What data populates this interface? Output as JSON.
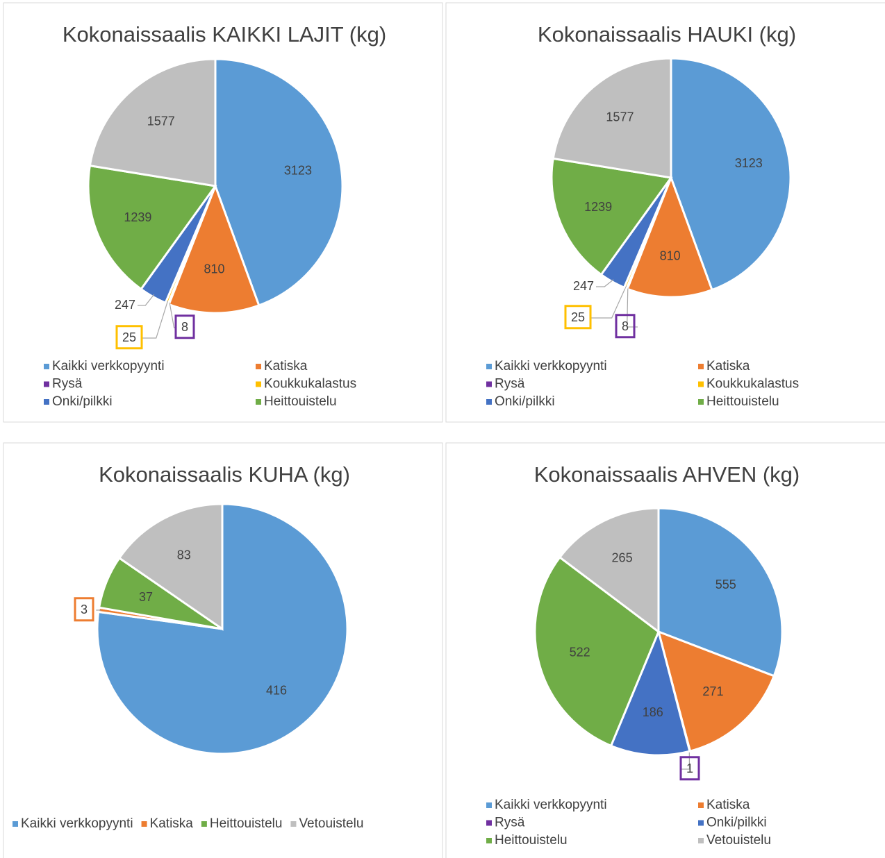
{
  "chart_data": [
    {
      "type": "pie",
      "title": "Kokonaissaalis KAIKKI LAJIT (kg)",
      "categories": [
        "Kaikki verkkopyynti",
        "Katiska",
        "Rysä",
        "Koukkukalastus",
        "Onki/pilkki",
        "Heittouistelu",
        null
      ],
      "values": [
        3123,
        810,
        8,
        25,
        247,
        1239,
        1577
      ],
      "colors": [
        "#5b9bd5",
        "#ed7d31",
        "#7030a0",
        "#ffc000",
        "#4472c4",
        "#70ad47",
        "#bfbfbf"
      ]
    },
    {
      "type": "pie",
      "title": "Kokonaissaalis HAUKI (kg)",
      "categories": [
        "Kaikki verkkopyynti",
        "Katiska",
        "Rysä",
        "Koukkukalastus",
        "Onki/pilkki",
        "Heittouistelu",
        null
      ],
      "values": [
        3123,
        810,
        8,
        25,
        247,
        1239,
        1577
      ],
      "colors": [
        "#5b9bd5",
        "#ed7d31",
        "#7030a0",
        "#ffc000",
        "#4472c4",
        "#70ad47",
        "#bfbfbf"
      ]
    },
    {
      "type": "pie",
      "title": "Kokonaissaalis KUHA (kg)",
      "categories": [
        "Kaikki verkkopyynti",
        "Katiska",
        "Heittouistelu",
        "Vetouistelu"
      ],
      "values": [
        416,
        3,
        37,
        83
      ],
      "colors": [
        "#5b9bd5",
        "#ed7d31",
        "#70ad47",
        "#bfbfbf"
      ]
    },
    {
      "type": "pie",
      "title": "Kokonaissaalis AHVEN (kg)",
      "categories": [
        "Kaikki verkkopyynti",
        "Katiska",
        "Rysä",
        "Onki/pilkki",
        "Heittouistelu",
        "Vetouistelu"
      ],
      "values": [
        555,
        271,
        1,
        186,
        522,
        265
      ],
      "colors": [
        "#5b9bd5",
        "#ed7d31",
        "#7030a0",
        "#4472c4",
        "#70ad47",
        "#bfbfbf"
      ]
    }
  ]
}
